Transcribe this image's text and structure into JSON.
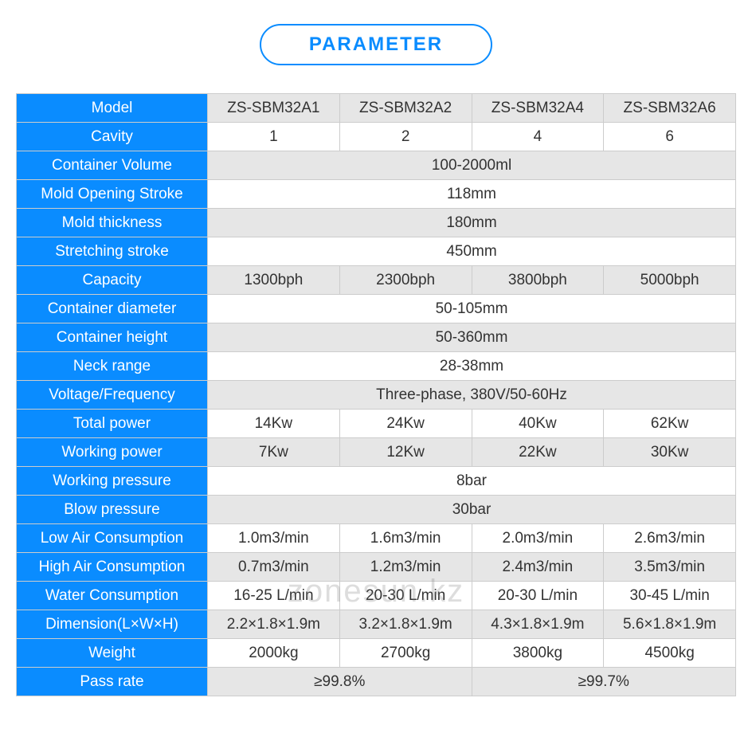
{
  "title": "PARAMETER",
  "watermark": "zonesun.kz",
  "colors": {
    "header_bg": "#0a8cff",
    "header_text": "#ffffff",
    "alt_row_bg": "#e6e6e6",
    "plain_row_bg": "#ffffff",
    "border": "#cccccc",
    "title_color": "#0a8cff"
  },
  "rows": [
    {
      "label": "Model",
      "cells": [
        "ZS-SBM32A1",
        "ZS-SBM32A2",
        "ZS-SBM32A4",
        "ZS-SBM32A6"
      ],
      "alt": true
    },
    {
      "label": "Cavity",
      "cells": [
        "1",
        "2",
        "4",
        "6"
      ],
      "alt": false
    },
    {
      "label": "Container Volume",
      "cells": [
        "100-2000ml"
      ],
      "alt": true,
      "span": 4
    },
    {
      "label": "Mold Opening Stroke",
      "cells": [
        "118mm"
      ],
      "alt": false,
      "span": 4
    },
    {
      "label": "Mold thickness",
      "cells": [
        "180mm"
      ],
      "alt": true,
      "span": 4
    },
    {
      "label": "Stretching stroke",
      "cells": [
        "450mm"
      ],
      "alt": false,
      "span": 4
    },
    {
      "label": "Capacity",
      "cells": [
        "1300bph",
        "2300bph",
        "3800bph",
        "5000bph"
      ],
      "alt": true
    },
    {
      "label": "Container diameter",
      "cells": [
        "50-105mm"
      ],
      "alt": false,
      "span": 4
    },
    {
      "label": "Container height",
      "cells": [
        "50-360mm"
      ],
      "alt": true,
      "span": 4
    },
    {
      "label": "Neck range",
      "cells": [
        "28-38mm"
      ],
      "alt": false,
      "span": 4
    },
    {
      "label": "Voltage/Frequency",
      "cells": [
        "Three-phase, 380V/50-60Hz"
      ],
      "alt": true,
      "span": 4
    },
    {
      "label": "Total power",
      "cells": [
        "14Kw",
        "24Kw",
        "40Kw",
        "62Kw"
      ],
      "alt": false
    },
    {
      "label": "Working power",
      "cells": [
        "7Kw",
        "12Kw",
        "22Kw",
        "30Kw"
      ],
      "alt": true
    },
    {
      "label": "Working pressure",
      "cells": [
        "8bar"
      ],
      "alt": false,
      "span": 4
    },
    {
      "label": "Blow pressure",
      "cells": [
        "30bar"
      ],
      "alt": true,
      "span": 4
    },
    {
      "label": "Low Air Consumption",
      "cells": [
        "1.0m3/min",
        "1.6m3/min",
        "2.0m3/min",
        "2.6m3/min"
      ],
      "alt": false
    },
    {
      "label": "High Air Consumption",
      "cells": [
        "0.7m3/min",
        "1.2m3/min",
        "2.4m3/min",
        "3.5m3/min"
      ],
      "alt": true
    },
    {
      "label": "Water Consumption",
      "cells": [
        "16-25 L/min",
        "20-30 L/min",
        "20-30 L/min",
        "30-45 L/min"
      ],
      "alt": false
    },
    {
      "label": "Dimension(L×W×H)",
      "cells": [
        "2.2×1.8×1.9m",
        "3.2×1.8×1.9m",
        "4.3×1.8×1.9m",
        "5.6×1.8×1.9m"
      ],
      "alt": true
    },
    {
      "label": "Weight",
      "cells": [
        "2000kg",
        "2700kg",
        "3800kg",
        "4500kg"
      ],
      "alt": false
    },
    {
      "label": "Pass rate",
      "cells": [
        "≥99.8%",
        "≥99.7%"
      ],
      "alt": true,
      "spans": [
        2,
        2
      ]
    }
  ]
}
